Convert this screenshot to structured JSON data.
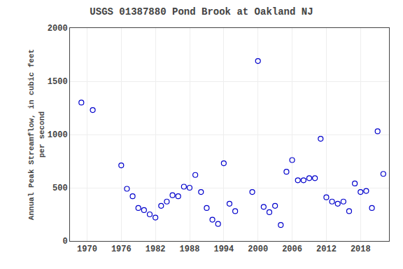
{
  "chart_data": {
    "type": "scatter",
    "title": "USGS 01387880 Pond Brook at Oakland NJ",
    "ylabel": "Annual Peak Streamflow, in cubic feet\nper second",
    "x": [
      1969,
      1971,
      1976,
      1977,
      1978,
      1979,
      1980,
      1981,
      1982,
      1983,
      1984,
      1985,
      1986,
      1987,
      1988,
      1989,
      1990,
      1991,
      1992,
      1993,
      1994,
      1995,
      1996,
      1999,
      2000,
      2001,
      2002,
      2003,
      2004,
      2005,
      2006,
      2007,
      2008,
      2009,
      2010,
      2011,
      2012,
      2013,
      2014,
      2015,
      2016,
      2017,
      2018,
      2019,
      2020,
      2021,
      2022
    ],
    "values": [
      1300,
      1230,
      710,
      490,
      420,
      310,
      290,
      250,
      220,
      330,
      370,
      430,
      420,
      510,
      500,
      620,
      460,
      310,
      200,
      160,
      730,
      350,
      280,
      460,
      1690,
      320,
      270,
      330,
      150,
      650,
      760,
      570,
      570,
      590,
      590,
      960,
      410,
      370,
      350,
      370,
      280,
      540,
      460,
      470,
      310,
      1030,
      630
    ],
    "color": "#0000cc",
    "marker": "open circle",
    "xlim": [
      1967,
      2023
    ],
    "xticks": [
      1970,
      1976,
      1982,
      1988,
      1994,
      2000,
      2006,
      2012,
      2018
    ],
    "ylim": [
      0,
      2000
    ],
    "yticks": [
      0,
      500,
      1000,
      1500,
      2000
    ],
    "grid": true
  }
}
